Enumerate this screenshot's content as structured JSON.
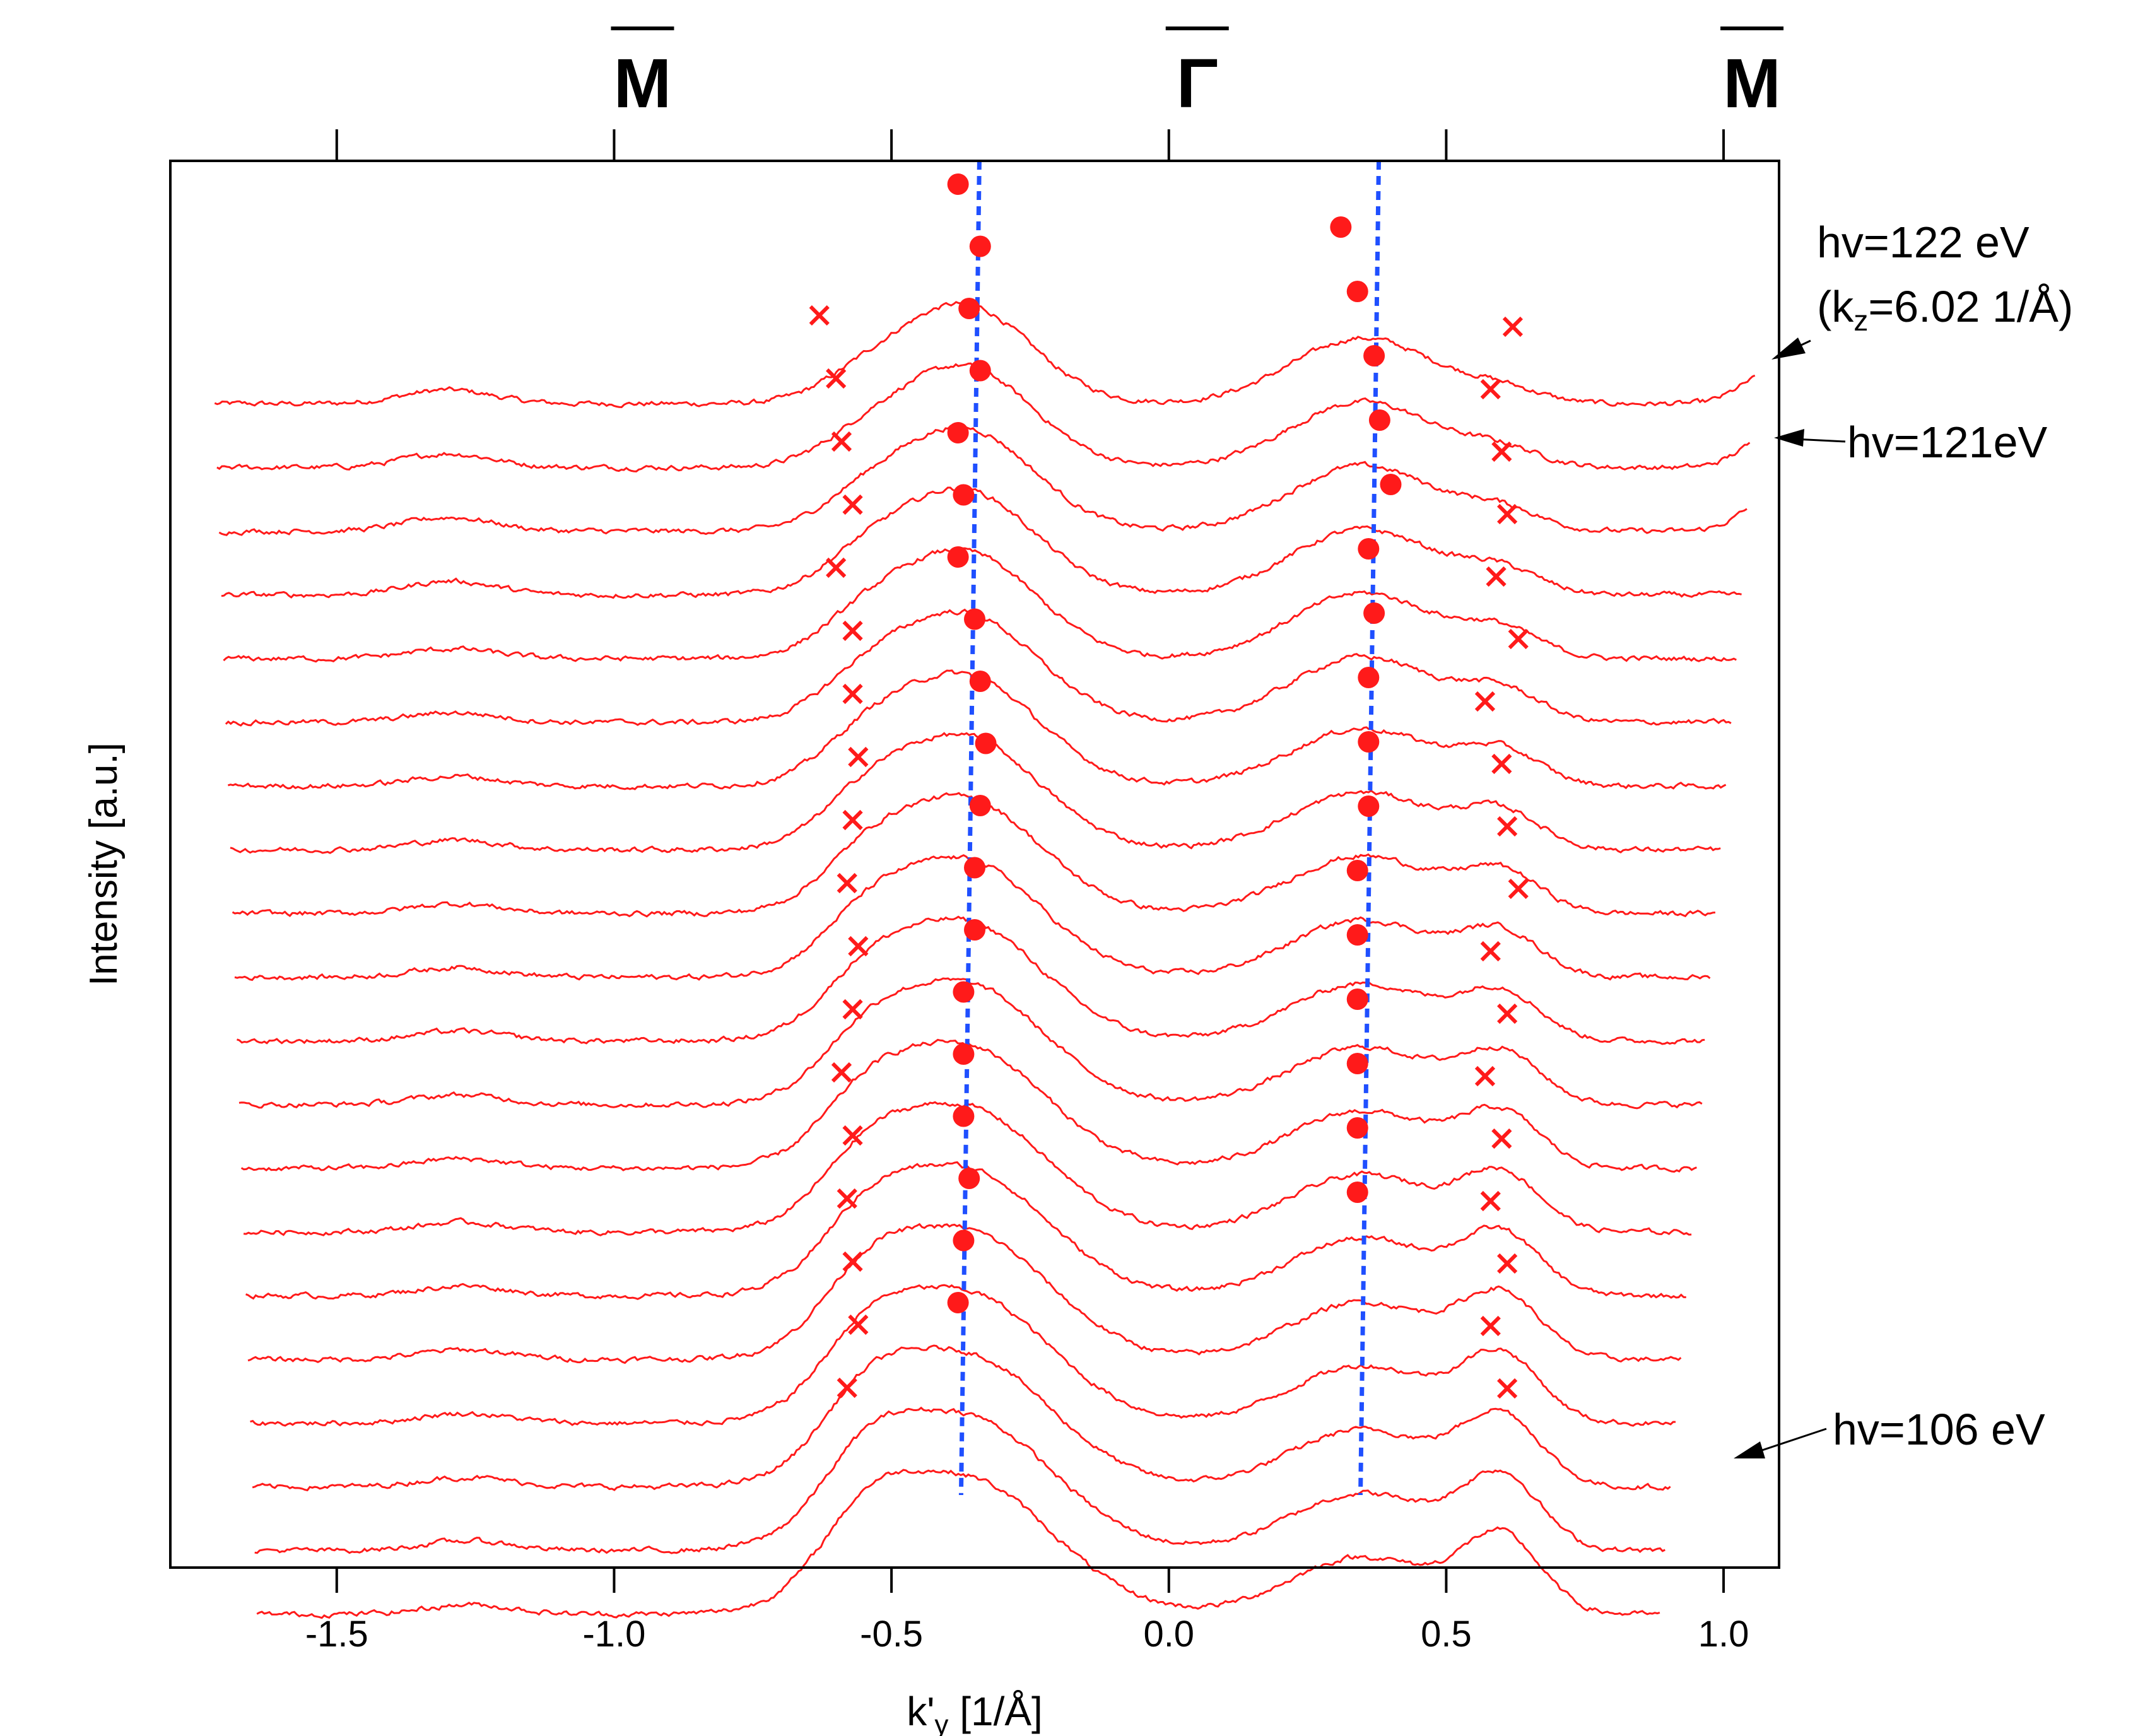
{
  "chart_data": {
    "type": "line",
    "title": "",
    "xlabel_main": "k'",
    "xlabel_sub": "y",
    "xlabel_unit": " [1/Å]",
    "ylabel": "Intensity [a.u.]",
    "xlim": [
      -1.8,
      1.1
    ],
    "y_offset_curves": 20,
    "x_ticks": [
      -1.5,
      -1.0,
      -0.5,
      0.0,
      0.5,
      1.0
    ],
    "x_tick_labels": [
      "-1.5",
      "-1.0",
      "-0.5",
      "0.0",
      "0.5",
      "1.0"
    ],
    "symmetry_points": [
      {
        "label": "M",
        "x": -1.0
      },
      {
        "label": "Γ",
        "x": 0.0
      },
      {
        "label": "M",
        "x": 1.0
      }
    ],
    "colors": {
      "curve": "#ff1a1a",
      "marker": "#ff1a1a",
      "guide": "#1f4fff",
      "axis": "#000000"
    },
    "dashed_guides": [
      {
        "x": -0.37
      },
      {
        "x": 0.35
      }
    ],
    "series_note": "20 stacked MDC curves, top hv=122 eV to bottom hv=106 eV",
    "peaks_dots_left": [
      -0.38,
      -0.34,
      -0.36,
      -0.34,
      -0.38,
      -0.37,
      -0.38,
      -0.35,
      -0.34,
      -0.33,
      -0.34,
      -0.35,
      -0.35,
      -0.37,
      -0.37,
      -0.37,
      -0.36,
      -0.37,
      -0.38
    ],
    "peaks_dots_right": [
      0.31,
      0.34,
      0.37,
      0.38,
      0.4,
      0.36,
      0.37,
      0.36,
      0.36,
      0.36,
      0.34,
      0.34,
      0.34,
      0.34,
      0.34,
      0.34
    ],
    "peaks_x_left": [
      -0.63,
      -0.6,
      -0.59,
      -0.57,
      -0.6,
      -0.57,
      -0.57,
      -0.56,
      -0.57,
      -0.58,
      -0.56,
      -0.57,
      -0.59,
      -0.57,
      -0.58,
      -0.57,
      -0.56,
      -0.58
    ],
    "peaks_x_right": [
      0.62,
      0.58,
      0.6,
      0.61,
      0.59,
      0.63,
      0.57,
      0.6,
      0.61,
      0.63,
      0.58,
      0.61,
      0.57,
      0.6,
      0.58,
      0.61,
      0.58,
      0.61
    ],
    "annotations": [
      {
        "text": "hv=122 eV",
        "curve": 0
      },
      {
        "text": "(k",
        "sub": "z",
        "rest": "=6.02 1/Å)"
      },
      {
        "text": "hv=121eV",
        "curve": 1
      },
      {
        "text": "hv=106 eV",
        "curve": 19
      }
    ]
  }
}
